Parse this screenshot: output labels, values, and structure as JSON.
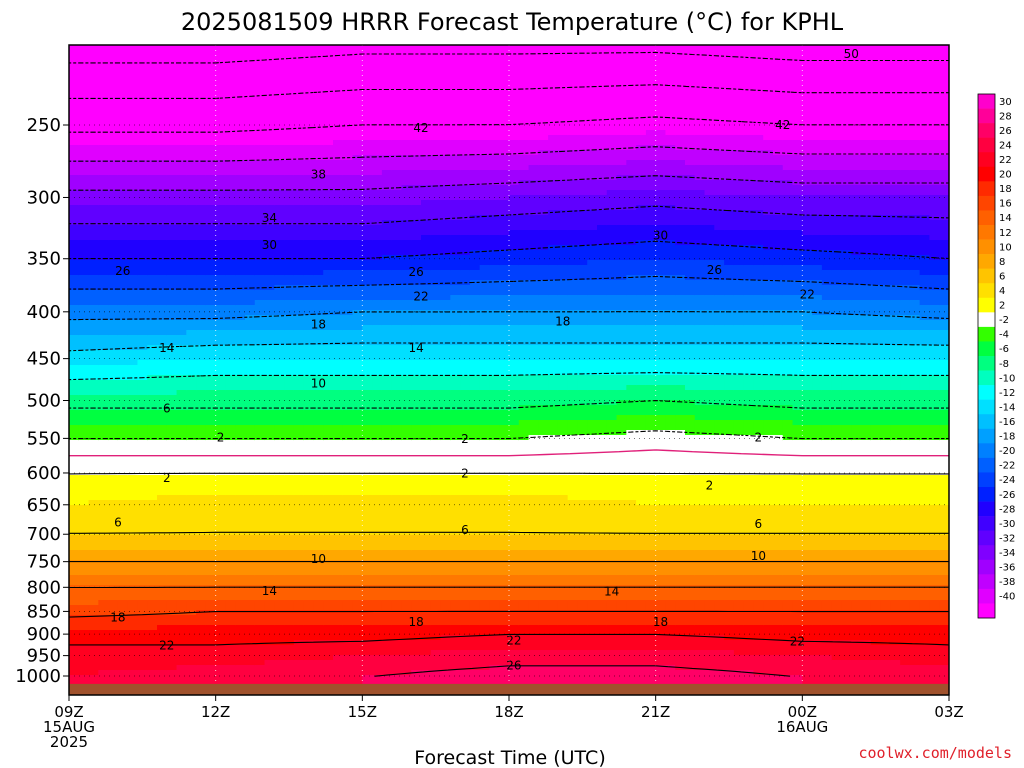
{
  "chart_data": {
    "type": "heatmap",
    "title": "2025081509 HRRR Forecast Temperature (°C) for KPHL",
    "xlabel": "Forecast Time (UTC)",
    "ylabel": "",
    "credit": "coolwx.com/models",
    "x_ticks": [
      {
        "hour": 0,
        "lines": [
          "09Z",
          "15AUG",
          "2025"
        ]
      },
      {
        "hour": 3,
        "lines": [
          "12Z"
        ]
      },
      {
        "hour": 6,
        "lines": [
          "15Z"
        ]
      },
      {
        "hour": 9,
        "lines": [
          "18Z"
        ]
      },
      {
        "hour": 12,
        "lines": [
          "21Z"
        ]
      },
      {
        "hour": 15,
        "lines": [
          "00Z",
          "16AUG"
        ]
      },
      {
        "hour": 18,
        "lines": [
          "03Z"
        ]
      }
    ],
    "xlim_hours": [
      0,
      18
    ],
    "y_axis": "pressure (hPa), log scale, inverted",
    "y_ticks": [
      250,
      300,
      350,
      400,
      450,
      500,
      550,
      600,
      650,
      700,
      750,
      800,
      850,
      900,
      950,
      1000
    ],
    "ylim": [
      1045,
      200
    ],
    "surface_pressure": 1020,
    "colorbar": {
      "labels": [
        "30",
        "28",
        "26",
        "24",
        "22",
        "20",
        "18",
        "16",
        "14",
        "12",
        "10",
        "8",
        "6",
        "4",
        "2",
        "-2",
        "-4",
        "-6",
        "-8",
        "-10",
        "-12",
        "-14",
        "-16",
        "-18",
        "-20",
        "-22",
        "-24",
        "-26",
        "-28",
        "-30",
        "-32",
        "-34",
        "-36",
        "-38",
        "-40"
      ]
    },
    "colors": {
      "surface": "#a0522d",
      "freezing_line": "#e0207a",
      "credit": "#e0202a"
    },
    "temperature_profile": {
      "description": "approximate temperature (°C) at each pressure level, per forecast hour",
      "hours": [
        0,
        3,
        6,
        9,
        12,
        15,
        18
      ],
      "levels": [
        {
          "p": 200,
          "t": [
            -53,
            -53,
            -52,
            -52,
            -52,
            -53,
            -53
          ]
        },
        {
          "p": 250,
          "t": [
            -43,
            -43,
            -42,
            -42,
            -41,
            -42,
            -42
          ]
        },
        {
          "p": 300,
          "t": [
            -33,
            -33,
            -33,
            -32,
            -31,
            -32,
            -32
          ]
        },
        {
          "p": 350,
          "t": [
            -26,
            -26,
            -26,
            -25,
            -24,
            -25,
            -26
          ]
        },
        {
          "p": 400,
          "t": [
            -19,
            -19,
            -18,
            -18,
            -18,
            -18,
            -19
          ]
        },
        {
          "p": 450,
          "t": [
            -13,
            -12,
            -12,
            -12,
            -12,
            -12,
            -12
          ]
        },
        {
          "p": 500,
          "t": [
            -7,
            -7,
            -7,
            -7,
            -6,
            -7,
            -7
          ]
        },
        {
          "p": 550,
          "t": [
            -2,
            -2,
            -2,
            -2,
            -1,
            -2,
            -2
          ]
        },
        {
          "p": 600,
          "t": [
            2,
            2,
            2,
            2,
            2,
            2,
            2
          ]
        },
        {
          "p": 650,
          "t": [
            4,
            5,
            5,
            5,
            4,
            4,
            4
          ]
        },
        {
          "p": 700,
          "t": [
            6,
            6,
            6,
            6,
            6,
            6,
            6
          ]
        },
        {
          "p": 750,
          "t": [
            10,
            10,
            10,
            10,
            10,
            10,
            10
          ]
        },
        {
          "p": 800,
          "t": [
            14,
            14,
            14,
            14,
            14,
            14,
            14
          ]
        },
        {
          "p": 850,
          "t": [
            17,
            18,
            18,
            18,
            18,
            18,
            18
          ]
        },
        {
          "p": 900,
          "t": [
            21,
            21,
            21,
            22,
            22,
            21,
            21
          ]
        },
        {
          "p": 950,
          "t": [
            23,
            23,
            24,
            25,
            25,
            24,
            23
          ]
        },
        {
          "p": 1000,
          "t": [
            24,
            25,
            26,
            27,
            27,
            26,
            25
          ]
        },
        {
          "p": 1020,
          "t": [
            24,
            25,
            26,
            27,
            27,
            26,
            25
          ]
        }
      ]
    },
    "contour_labels": [
      {
        "text": "50",
        "hour": 16.0,
        "p": 209
      },
      {
        "text": "42",
        "hour": 7.2,
        "p": 252
      },
      {
        "text": "42",
        "hour": 14.6,
        "p": 250
      },
      {
        "text": "38",
        "hour": 5.1,
        "p": 283
      },
      {
        "text": "34",
        "hour": 4.1,
        "p": 316
      },
      {
        "text": "30",
        "hour": 4.1,
        "p": 338
      },
      {
        "text": "30",
        "hour": 12.1,
        "p": 330
      },
      {
        "text": "26",
        "hour": 1.1,
        "p": 361
      },
      {
        "text": "26",
        "hour": 7.1,
        "p": 362
      },
      {
        "text": "26",
        "hour": 13.2,
        "p": 360
      },
      {
        "text": "22",
        "hour": 7.2,
        "p": 385
      },
      {
        "text": "22",
        "hour": 15.1,
        "p": 383
      },
      {
        "text": "18",
        "hour": 5.1,
        "p": 413
      },
      {
        "text": "18",
        "hour": 10.1,
        "p": 410
      },
      {
        "text": "14",
        "hour": 2.0,
        "p": 438
      },
      {
        "text": "14",
        "hour": 7.1,
        "p": 438
      },
      {
        "text": "10",
        "hour": 5.1,
        "p": 479
      },
      {
        "text": "6",
        "hour": 2.0,
        "p": 510
      },
      {
        "text": "2",
        "hour": 3.1,
        "p": 549
      },
      {
        "text": "2",
        "hour": 8.1,
        "p": 551
      },
      {
        "text": "2",
        "hour": 14.1,
        "p": 549
      },
      {
        "text": "2",
        "hour": 2.0,
        "p": 608
      },
      {
        "text": "2",
        "hour": 8.1,
        "p": 601
      },
      {
        "text": "2",
        "hour": 13.1,
        "p": 619
      },
      {
        "text": "6",
        "hour": 1.0,
        "p": 680
      },
      {
        "text": "6",
        "hour": 8.1,
        "p": 693
      },
      {
        "text": "6",
        "hour": 14.1,
        "p": 682
      },
      {
        "text": "10",
        "hour": 5.1,
        "p": 745
      },
      {
        "text": "10",
        "hour": 14.1,
        "p": 739
      },
      {
        "text": "14",
        "hour": 4.1,
        "p": 807
      },
      {
        "text": "14",
        "hour": 11.1,
        "p": 808
      },
      {
        "text": "18",
        "hour": 1.0,
        "p": 863
      },
      {
        "text": "18",
        "hour": 7.1,
        "p": 873
      },
      {
        "text": "18",
        "hour": 12.1,
        "p": 873
      },
      {
        "text": "22",
        "hour": 2.0,
        "p": 926
      },
      {
        "text": "22",
        "hour": 9.1,
        "p": 914
      },
      {
        "text": "22",
        "hour": 14.9,
        "p": 917
      },
      {
        "text": "26",
        "hour": 9.1,
        "p": 974
      }
    ]
  }
}
